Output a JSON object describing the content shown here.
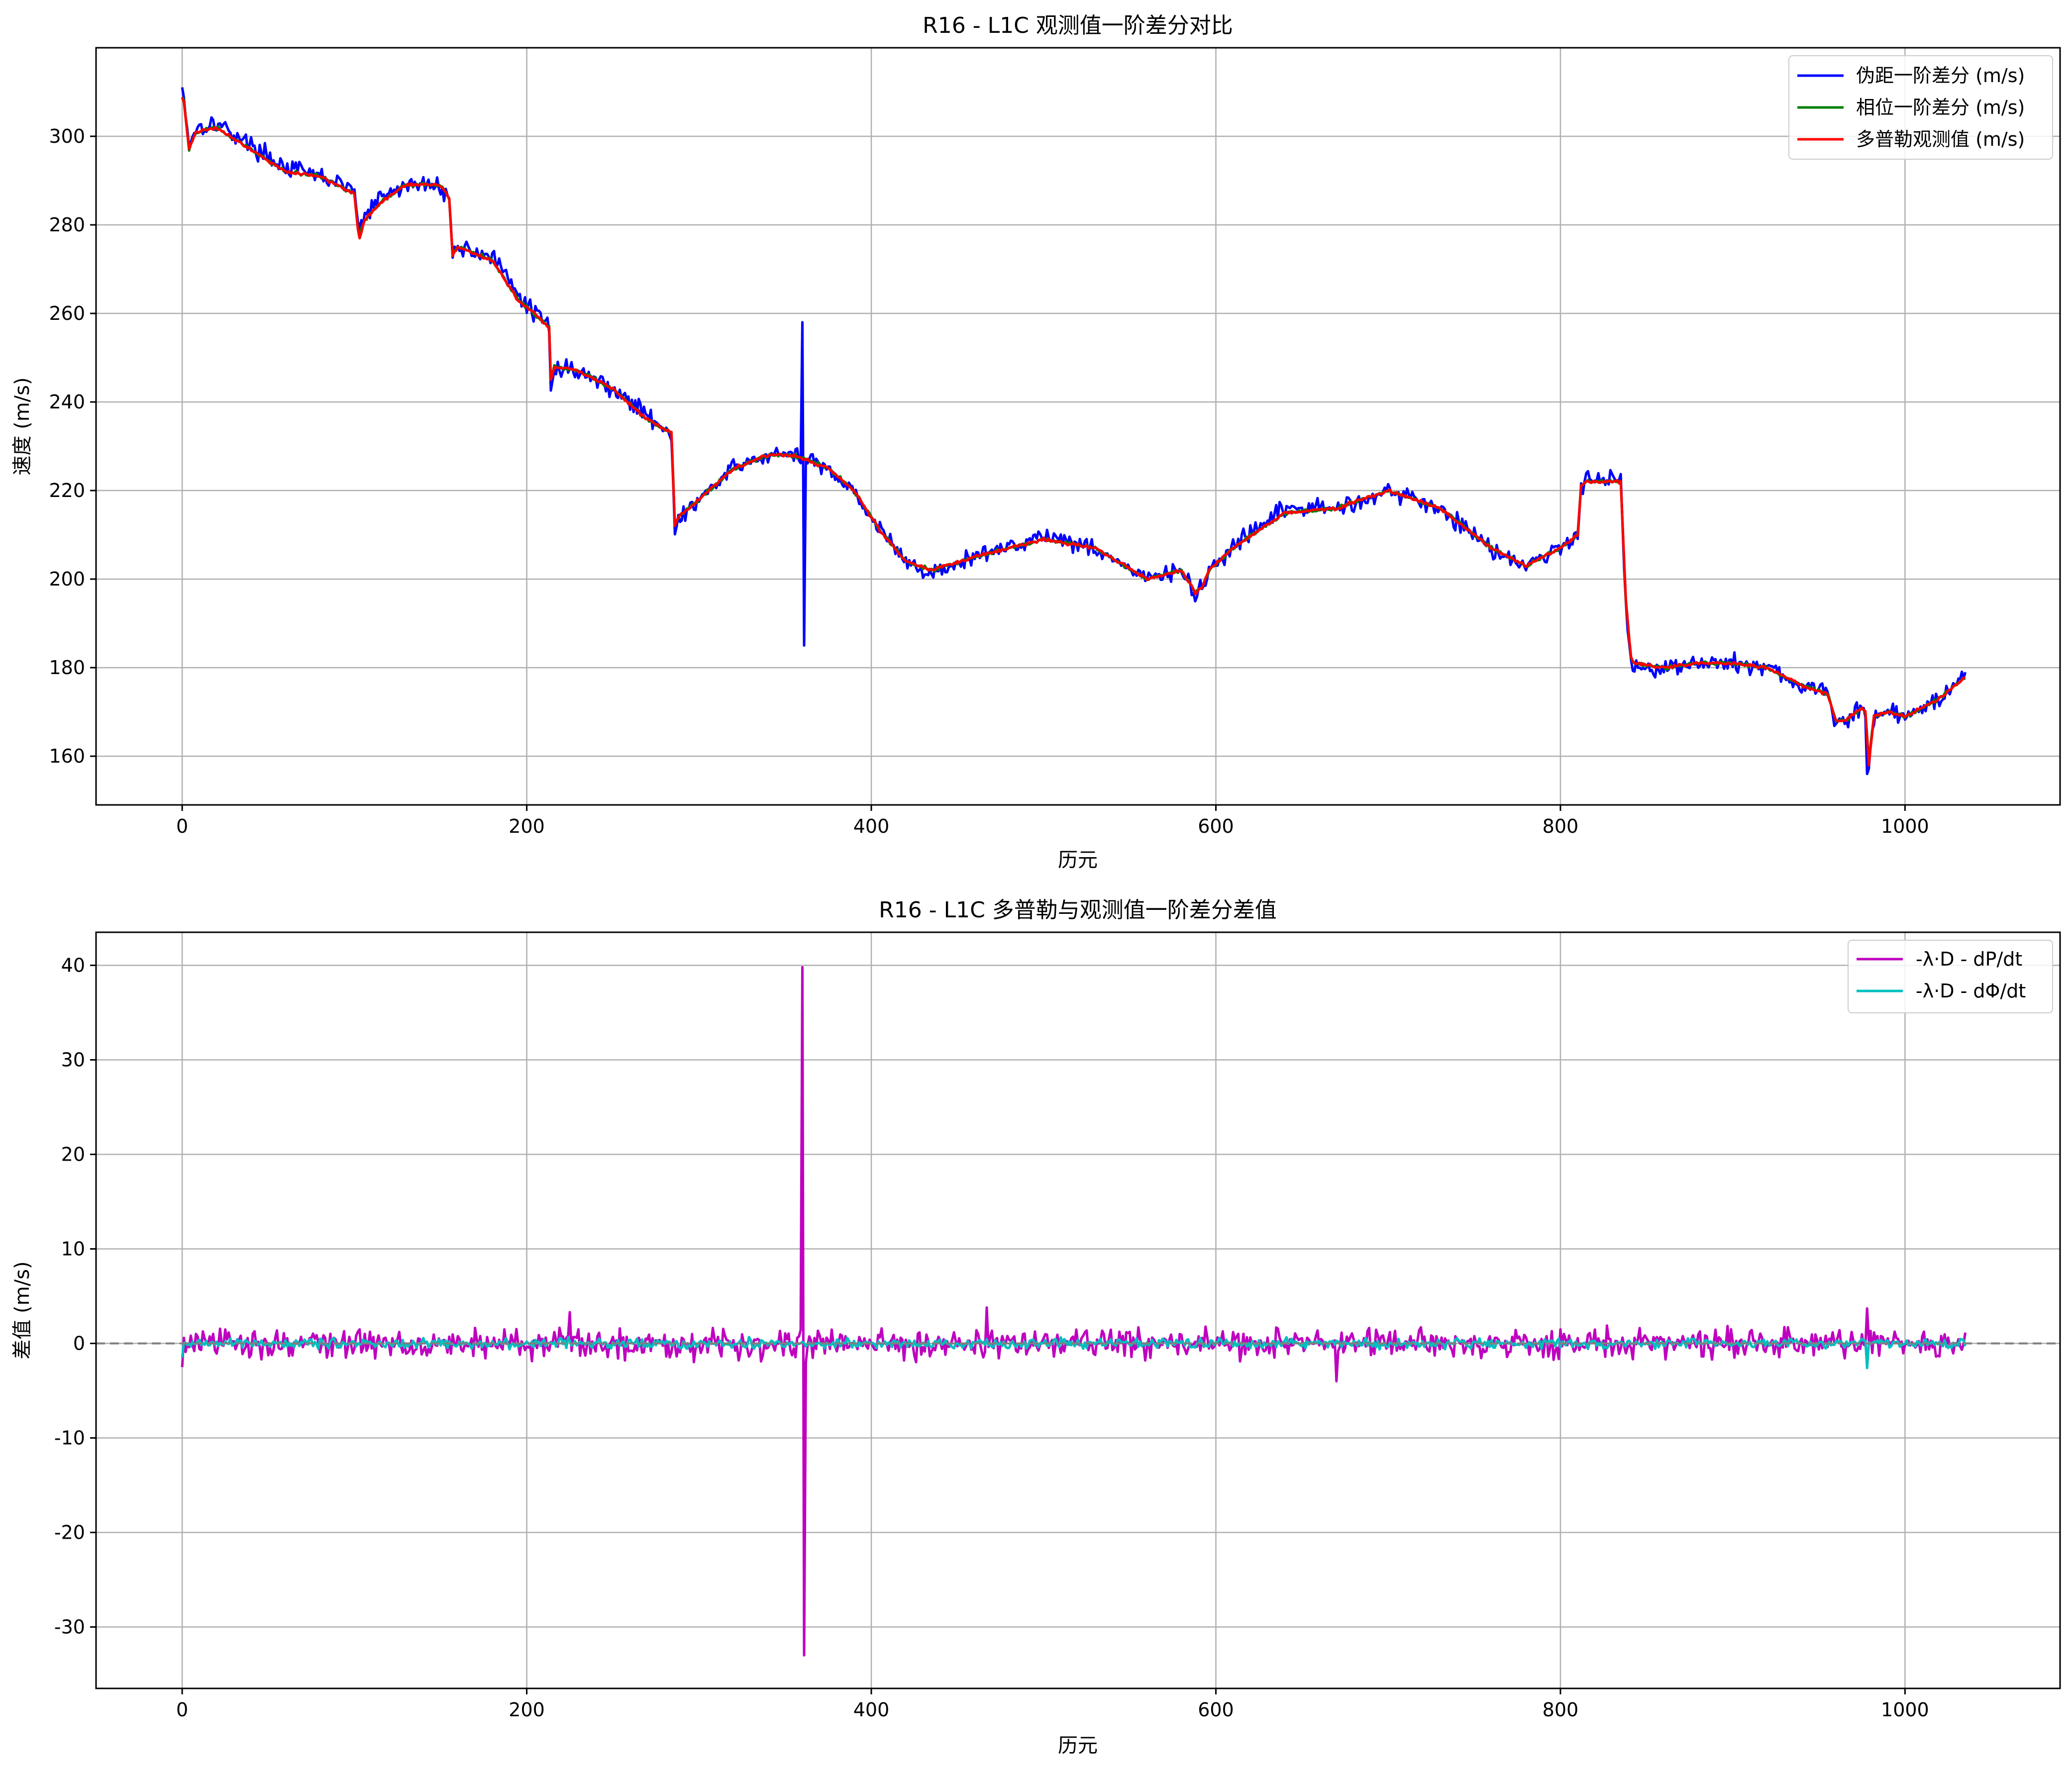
{
  "chart_data": [
    {
      "type": "line",
      "title": "R16 - L1C 观测值一阶差分对比",
      "xlabel": "历元",
      "ylabel": "速度 (m/s)",
      "xlim": [
        -50,
        1090
      ],
      "ylim": [
        149,
        320
      ],
      "xticks": [
        "0",
        "200",
        "400",
        "600",
        "800",
        "1000"
      ],
      "yticks": [
        "160",
        "180",
        "200",
        "220",
        "240",
        "260",
        "280",
        "300"
      ],
      "grid": true,
      "legend_position": "top-right",
      "series": [
        {
          "name": "伪距一阶差分 (m/s)",
          "color": "#0000ff",
          "noise": 1.4,
          "spikes": [
            [
              360,
              258
            ],
            [
              361,
              185
            ],
            [
              362,
              227
            ],
            [
              978,
              156
            ]
          ],
          "x": [
            0,
            1,
            4,
            8,
            20,
            40,
            60,
            80,
            100,
            102,
            103,
            106,
            115,
            130,
            150,
            155,
            157,
            160,
            180,
            195,
            210,
            213,
            214,
            216,
            230,
            250,
            270,
            284,
            286,
            288,
            300,
            320,
            340,
            355,
            375,
            390,
            405,
            420,
            435,
            460,
            500,
            530,
            560,
            580,
            588,
            592,
            596,
            610,
            640,
            670,
            700,
            730,
            760,
            780,
            800,
            810,
            812,
            815,
            835,
            838,
            841,
            843,
            860,
            880,
            900,
            920,
            940,
            955,
            960,
            965,
            975,
            977,
            979,
            982,
            990,
            1000,
            1020,
            1035
          ],
          "y": [
            311,
            309,
            298,
            302,
            303,
            298,
            293,
            291,
            288,
            280,
            279,
            282,
            286,
            289,
            289,
            286,
            273,
            275,
            273,
            264,
            258,
            257,
            244,
            248,
            247,
            243,
            237,
            233,
            211,
            213,
            218,
            225,
            228,
            228,
            225,
            220,
            211,
            204,
            201,
            205,
            210,
            207,
            200,
            202,
            196,
            198,
            202,
            207,
            216,
            216,
            220,
            216,
            207,
            203,
            207,
            210,
            221,
            223,
            223,
            193,
            181,
            180,
            180,
            181,
            181,
            180,
            176,
            174,
            167,
            168,
            171,
            169,
            157,
            169,
            170,
            169,
            173,
            179
          ]
        },
        {
          "name": "相位一阶差分 (m/s)",
          "color": "#008000",
          "noise": 0.3,
          "spikes": [],
          "x": [
            0,
            1,
            4,
            8,
            20,
            40,
            60,
            80,
            100,
            102,
            103,
            106,
            115,
            130,
            150,
            155,
            157,
            160,
            180,
            195,
            210,
            213,
            214,
            216,
            230,
            250,
            270,
            284,
            286,
            288,
            300,
            320,
            340,
            355,
            375,
            390,
            405,
            420,
            435,
            460,
            500,
            530,
            560,
            580,
            588,
            592,
            596,
            610,
            640,
            670,
            700,
            730,
            760,
            780,
            800,
            810,
            812,
            815,
            835,
            838,
            841,
            843,
            860,
            880,
            900,
            920,
            940,
            955,
            960,
            965,
            975,
            977,
            979,
            982,
            990,
            1000,
            1020,
            1035
          ],
          "y": [
            309,
            308,
            297,
            301,
            302,
            297,
            292,
            291,
            287,
            279,
            278,
            281,
            285,
            289,
            289,
            286,
            273,
            275,
            272,
            263,
            258,
            257,
            245,
            248,
            247,
            243,
            236,
            233,
            212,
            214,
            218,
            225,
            228,
            228,
            225,
            220,
            211,
            204,
            202,
            205,
            209,
            207,
            200,
            202,
            197,
            198,
            202,
            207,
            215,
            216,
            220,
            216,
            207,
            203,
            207,
            210,
            221,
            222,
            222,
            195,
            182,
            181,
            180,
            181,
            181,
            180,
            176,
            174,
            168,
            168,
            171,
            170,
            159,
            169,
            170,
            169,
            173,
            178
          ]
        },
        {
          "name": "多普勒观测值 (m/s)",
          "color": "#ff0000",
          "noise": 0.25,
          "spikes": [],
          "x": [
            0,
            1,
            4,
            8,
            20,
            40,
            60,
            80,
            100,
            102,
            103,
            106,
            115,
            130,
            150,
            155,
            157,
            160,
            180,
            195,
            210,
            213,
            214,
            216,
            230,
            250,
            270,
            284,
            286,
            288,
            300,
            320,
            340,
            355,
            375,
            390,
            405,
            420,
            435,
            460,
            500,
            530,
            560,
            580,
            588,
            592,
            596,
            610,
            640,
            670,
            700,
            730,
            760,
            780,
            800,
            810,
            812,
            815,
            835,
            838,
            841,
            843,
            860,
            880,
            900,
            920,
            940,
            955,
            960,
            965,
            975,
            977,
            979,
            982,
            990,
            1000,
            1020,
            1035
          ],
          "y": [
            309,
            308,
            297,
            301,
            302,
            297,
            292,
            291,
            287,
            279,
            277,
            281,
            285,
            289,
            289,
            286,
            273,
            275,
            272,
            263,
            258,
            257,
            245,
            248,
            247,
            243,
            236,
            233,
            212,
            214,
            218,
            225,
            228,
            228,
            225,
            220,
            211,
            204,
            202,
            205,
            209,
            207,
            200,
            202,
            197,
            198,
            202,
            207,
            215,
            216,
            220,
            216,
            207,
            203,
            207,
            210,
            221,
            222,
            222,
            195,
            182,
            181,
            180,
            181,
            181,
            180,
            176,
            174,
            168,
            168,
            171,
            170,
            158,
            169,
            170,
            169,
            173,
            178
          ]
        }
      ]
    },
    {
      "type": "line",
      "title": "R16 - L1C 多普勒与观测值一阶差分差值",
      "xlabel": "历元",
      "ylabel": "差值 (m/s)",
      "xlim": [
        -50,
        1090
      ],
      "ylim": [
        -36.5,
        43.5
      ],
      "xticks": [
        "0",
        "200",
        "400",
        "600",
        "800",
        "1000"
      ],
      "yticks": [
        "-30",
        "-20",
        "-10",
        "0",
        "10",
        "20",
        "30",
        "40"
      ],
      "grid": true,
      "zero_line": true,
      "legend_position": "top-right",
      "series": [
        {
          "name": "-λ·D - dP/dt",
          "color": "#bf00bf",
          "noise": 1.1,
          "spikes": [
            [
              0,
              -2.5
            ],
            [
              225,
              3.3
            ],
            [
              360,
              39.8
            ],
            [
              361,
              -33.0
            ],
            [
              362,
              -2.0
            ],
            [
              467,
              3.8
            ],
            [
              670,
              -4.0
            ],
            [
              978,
              3.7
            ]
          ],
          "x": [
            0,
            1035
          ],
          "y": [
            0,
            0
          ]
        },
        {
          "name": "-λ·D - dΦ/dt",
          "color": "#00bfbf",
          "noise": 0.35,
          "spikes": [
            [
              0,
              -1.5
            ],
            [
              978,
              -2.6
            ]
          ],
          "x": [
            0,
            1035
          ],
          "y": [
            0,
            0
          ]
        }
      ]
    }
  ]
}
